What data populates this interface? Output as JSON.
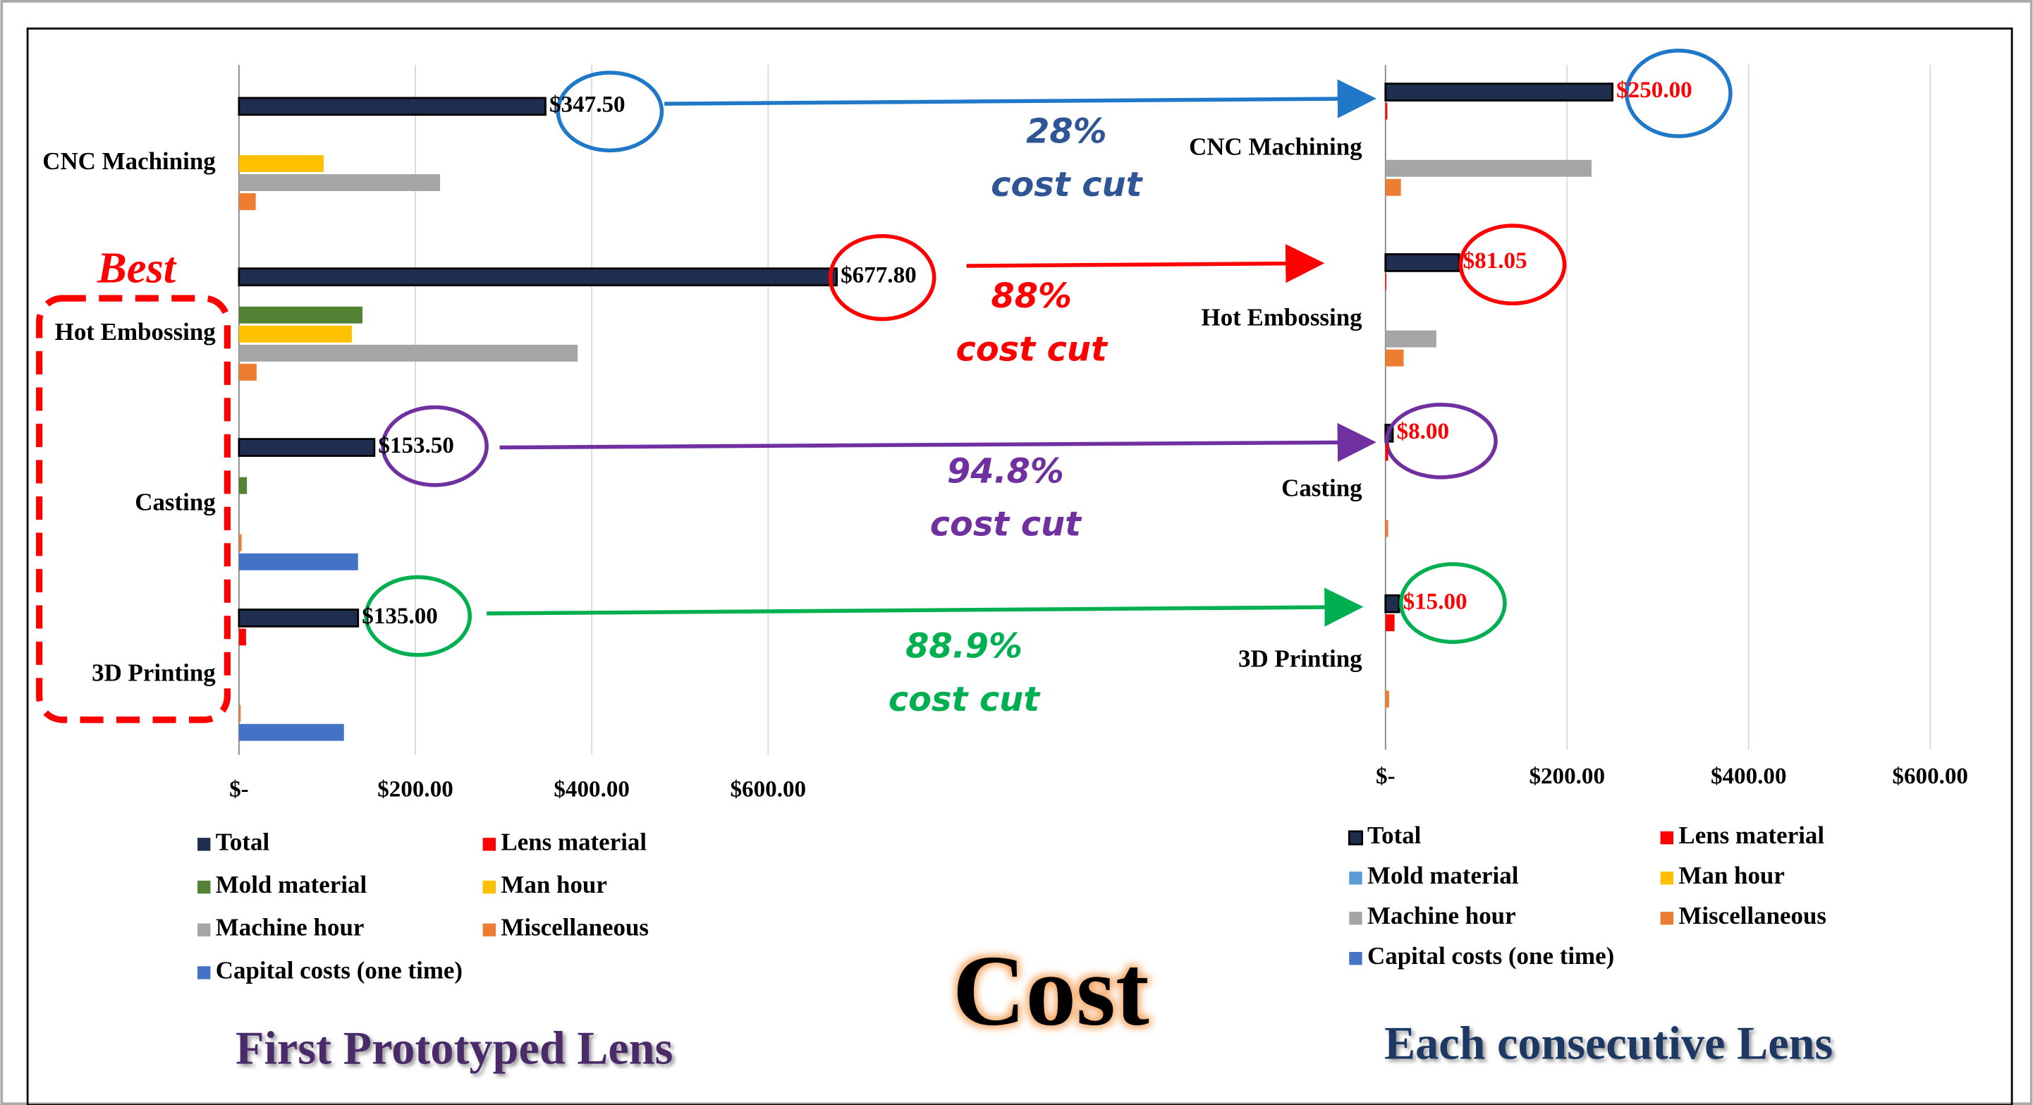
{
  "title": "Cost",
  "best_label": "Best",
  "annotations": [
    {
      "lines": [
        "28%",
        "cost cut"
      ],
      "color": "#2f5597"
    },
    {
      "lines": [
        "88%",
        "cost cut"
      ],
      "color": "#ff0000"
    },
    {
      "lines": [
        "94.8%",
        "cost cut"
      ],
      "color": "#7030a0"
    },
    {
      "lines": [
        "88.9%",
        "cost cut"
      ],
      "color": "#00b050"
    }
  ],
  "chart_data": [
    {
      "type": "bar",
      "orientation": "horizontal",
      "title": "First Prototyped Lens",
      "categories": [
        "CNC Machining",
        "Hot Embossing",
        "Casting",
        "3D Printing"
      ],
      "xlim": [
        0,
        700
      ],
      "xticks": [
        {
          "value": 0,
          "label": "$-"
        },
        {
          "value": 200,
          "label": "$200.00"
        },
        {
          "value": 400,
          "label": "$400.00"
        },
        {
          "value": 600,
          "label": "$600.00"
        }
      ],
      "grid": true,
      "series": [
        {
          "name": "Total",
          "color": "#1f2d4e",
          "values": [
            347.5,
            677.8,
            153.5,
            135
          ],
          "value_labels": [
            "$347.50",
            "$677.80",
            "$153.50",
            "$135.00"
          ]
        },
        {
          "name": "Lens material",
          "color": "#ff0000",
          "values": [
            0,
            0,
            0,
            8
          ]
        },
        {
          "name": "Mold material",
          "color": "#548235",
          "values": [
            0,
            140,
            9,
            0
          ]
        },
        {
          "name": "Man hour",
          "color": "#ffc000",
          "values": [
            96,
            128,
            0,
            0
          ]
        },
        {
          "name": "Machine hour",
          "color": "#a5a5a5",
          "values": [
            228,
            384,
            0,
            0
          ]
        },
        {
          "name": "Miscellaneous",
          "color": "#ed7d31",
          "values": [
            19,
            20,
            3,
            2
          ]
        },
        {
          "name": "Capital costs (one time)",
          "color": "#4472c4",
          "values": [
            0,
            0,
            135,
            119
          ]
        }
      ]
    },
    {
      "type": "bar",
      "orientation": "horizontal",
      "title": "Each consecutive Lens",
      "categories": [
        "CNC Machining",
        "Hot Embossing",
        "Casting",
        "3D Printing"
      ],
      "xlim": [
        0,
        650
      ],
      "xticks": [
        {
          "value": 0,
          "label": "$-"
        },
        {
          "value": 200,
          "label": "$200.00"
        },
        {
          "value": 400,
          "label": "$400.00"
        },
        {
          "value": 600,
          "label": "$600.00"
        }
      ],
      "grid": true,
      "series": [
        {
          "name": "Total",
          "color": "#1f2d4e",
          "values": [
            250,
            81.05,
            8,
            15
          ],
          "value_labels": [
            "$250.00",
            "$81.05",
            "$8.00",
            "$15.00"
          ]
        },
        {
          "name": "Lens material",
          "color": "#ff0000",
          "values": [
            2,
            1,
            3,
            10
          ]
        },
        {
          "name": "Mold material",
          "color": "#5b9bd5",
          "values": [
            0,
            0,
            0,
            0
          ]
        },
        {
          "name": "Man hour",
          "color": "#ffc000",
          "values": [
            0,
            0,
            0,
            0
          ]
        },
        {
          "name": "Machine hour",
          "color": "#a5a5a5",
          "values": [
            227,
            56,
            0,
            0
          ]
        },
        {
          "name": "Miscellaneous",
          "color": "#ed7d31",
          "values": [
            17,
            20,
            3,
            4
          ]
        },
        {
          "name": "Capital costs (one time)",
          "color": "#4472c4",
          "values": [
            0,
            0,
            0,
            0
          ]
        }
      ]
    }
  ]
}
